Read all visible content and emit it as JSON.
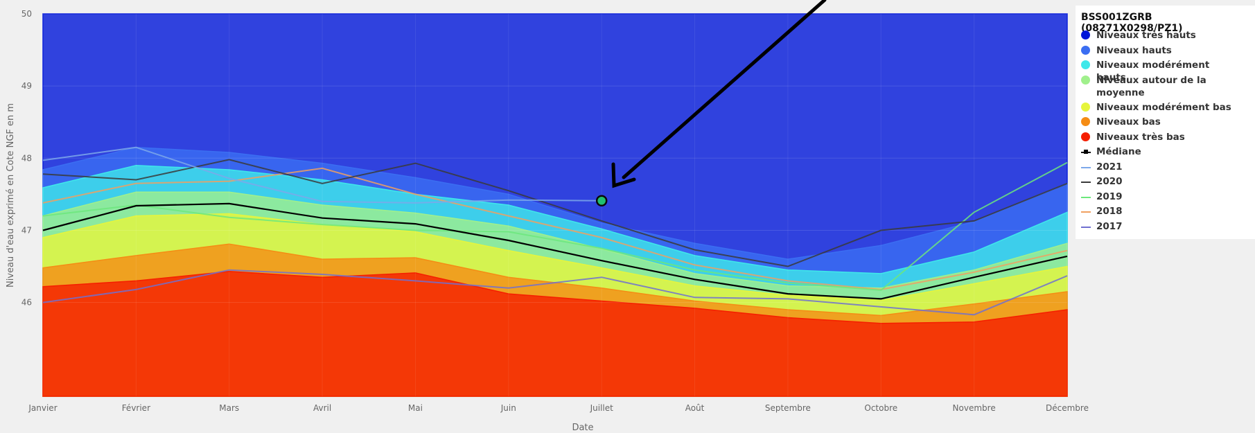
{
  "chart_data": {
    "type": "area",
    "title": "",
    "xlabel": "Date",
    "ylabel": "Niveau d'eau exprimé en Cote NGF en m",
    "x": [
      "Janvier",
      "Février",
      "Mars",
      "Avril",
      "Mai",
      "Juin",
      "Juillet",
      "Août",
      "Septembre",
      "Octobre",
      "Novembre",
      "Décembre"
    ],
    "ylim": [
      44.7,
      50
    ],
    "y_ticks": [
      46,
      47,
      48,
      49,
      50
    ],
    "grid": true,
    "legend_title": "BSS001ZGRB (08271X0298/PZ1)",
    "legend_position": "right",
    "bands": [
      {
        "name": "Niveaux très hauts",
        "color": "#0016d9",
        "values": [
          50,
          50,
          50,
          50,
          50,
          50,
          50,
          50,
          50,
          50,
          50,
          50
        ]
      },
      {
        "name": "Niveaux hauts",
        "color": "#3b6ef2",
        "values": [
          47.84,
          48.15,
          48.08,
          47.93,
          47.73,
          47.5,
          47.1,
          46.82,
          46.6,
          46.79,
          47.12,
          47.65
        ]
      },
      {
        "name": "Niveaux modérément hauts",
        "color": "#3fe8ea",
        "values": [
          47.59,
          47.9,
          47.84,
          47.7,
          47.5,
          47.35,
          47.02,
          46.65,
          46.45,
          46.4,
          46.7,
          47.25
        ]
      },
      {
        "name": "Niveaux autour de la moyenne",
        "color": "#a0f08c",
        "values": [
          47.2,
          47.53,
          47.53,
          47.35,
          47.24,
          47.06,
          46.74,
          46.4,
          46.23,
          46.2,
          46.45,
          46.82
        ]
      },
      {
        "name": "Niveaux modérément bas",
        "color": "#e6f53c",
        "values": [
          46.9,
          47.2,
          47.23,
          47.08,
          46.98,
          46.72,
          46.48,
          46.23,
          46.1,
          46.03,
          46.26,
          46.5
        ]
      },
      {
        "name": "Niveaux bas",
        "color": "#f58c14",
        "values": [
          46.48,
          46.65,
          46.81,
          46.6,
          46.62,
          46.35,
          46.2,
          46.02,
          45.9,
          45.82,
          45.98,
          46.15
        ]
      },
      {
        "name": "Niveaux très bas",
        "color": "#f51e00",
        "values": [
          46.22,
          46.3,
          46.43,
          46.35,
          46.41,
          46.12,
          46.02,
          45.92,
          45.79,
          45.71,
          45.73,
          45.9
        ]
      }
    ],
    "series": [
      {
        "name": "Médiane",
        "color": "#000000",
        "values": [
          47.0,
          47.34,
          47.37,
          47.17,
          47.09,
          46.86,
          46.58,
          46.32,
          46.12,
          46.05,
          46.35,
          46.64
        ]
      },
      {
        "name": "2021",
        "color": "#7ca8ea",
        "values": [
          47.97,
          48.15,
          47.72,
          47.4,
          47.38,
          47.42,
          47.41,
          null,
          null,
          null,
          null,
          null
        ]
      },
      {
        "name": "2020",
        "color": "#3a3a3a",
        "values": [
          47.78,
          47.7,
          47.98,
          47.65,
          47.93,
          47.55,
          47.13,
          46.73,
          46.5,
          47.0,
          47.13,
          47.65
        ]
      },
      {
        "name": "2019",
        "color": "#6ce87c",
        "values": [
          47.2,
          47.35,
          47.18,
          47.08,
          47.0,
          46.98,
          46.75,
          46.45,
          46.27,
          46.17,
          47.25,
          47.94
        ]
      },
      {
        "name": "2018",
        "color": "#f0a060",
        "values": [
          47.38,
          47.65,
          47.68,
          47.86,
          47.5,
          47.2,
          46.9,
          46.52,
          46.3,
          46.18,
          46.42,
          46.72
        ]
      },
      {
        "name": "2017",
        "color": "#7070d0",
        "values": [
          46.0,
          46.18,
          46.45,
          46.39,
          46.3,
          46.2,
          46.35,
          46.07,
          46.05,
          45.94,
          45.83,
          46.37
        ]
      }
    ],
    "highlight_point": {
      "x": "Juillet",
      "y": 47.41,
      "color": "#20c070"
    },
    "annotation": {
      "type": "arrow",
      "color": "#000000"
    }
  }
}
